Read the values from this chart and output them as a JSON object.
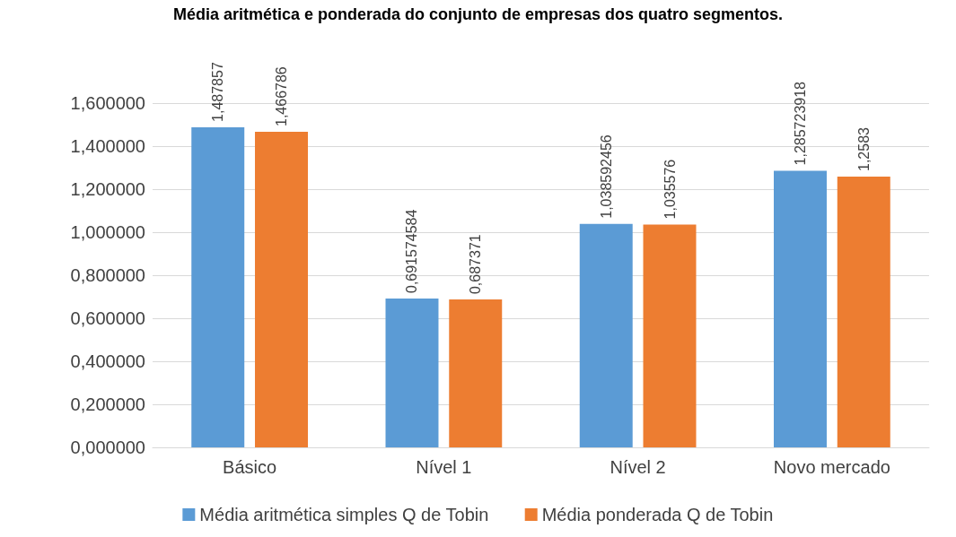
{
  "chart_data": {
    "type": "bar",
    "title": "Média aritmética e ponderada do conjunto de empresas dos quatro segmentos.",
    "categories": [
      "Básico",
      "Nível 1",
      "Nível 2",
      "Novo mercado"
    ],
    "series": [
      {
        "name": "Média aritmética simples Q de Tobin",
        "color": "#5b9bd5",
        "values": [
          1.487857,
          0.691574584,
          1.038592456,
          1.285723918
        ],
        "value_labels": [
          "1,487857",
          "0,691574584",
          "1,038592456",
          "1,285723918"
        ]
      },
      {
        "name": "Média ponderada Q de Tobin",
        "color": "#ed7d31",
        "values": [
          1.466786,
          0.687371,
          1.035576,
          1.2583
        ],
        "value_labels": [
          "1,466786",
          "0,687371",
          "1,035576",
          "1,2583"
        ]
      }
    ],
    "ylim": [
      0,
      1.6
    ],
    "yticks": [
      {
        "value": 0,
        "label": "0,000000"
      },
      {
        "value": 0.2,
        "label": "0,200000"
      },
      {
        "value": 0.4,
        "label": "0,400000"
      },
      {
        "value": 0.6,
        "label": "0,600000"
      },
      {
        "value": 0.8,
        "label": "0,800000"
      },
      {
        "value": 1.0,
        "label": "1,000000"
      },
      {
        "value": 1.2,
        "label": "1,200000"
      },
      {
        "value": 1.4,
        "label": "1,400000"
      },
      {
        "value": 1.6,
        "label": "1,600000"
      }
    ],
    "grid": "y",
    "legend": "bottom"
  }
}
